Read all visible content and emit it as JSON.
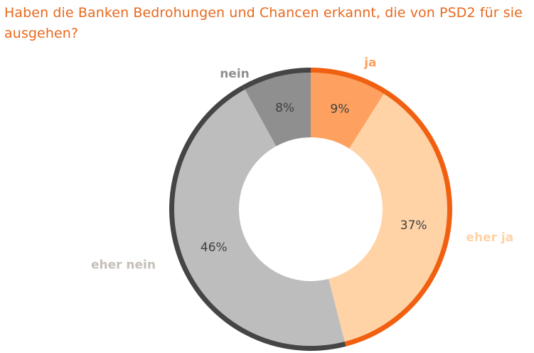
{
  "chart_data": {
    "type": "pie",
    "style": "donut",
    "title": "Haben die Banken Bedrohungen und Chancen erkannt, die von PSD2 für sie ausgehen?",
    "categories": [
      "ja",
      "eher ja",
      "eher nein",
      "nein"
    ],
    "values": [
      9,
      37,
      46,
      8
    ],
    "value_labels": [
      "9%",
      "37%",
      "46%",
      "8%"
    ],
    "colors": [
      "#fea160",
      "#ffd3a6",
      "#bdbdbd",
      "#8f8f8f"
    ],
    "label_colors": [
      "#fea160",
      "#ffd3a6",
      "#c4bfb9",
      "#8f8f8f"
    ],
    "outer_ring_colors": [
      "#f06010",
      "#f06010",
      "#454545",
      "#454545"
    ],
    "legend": "none"
  }
}
